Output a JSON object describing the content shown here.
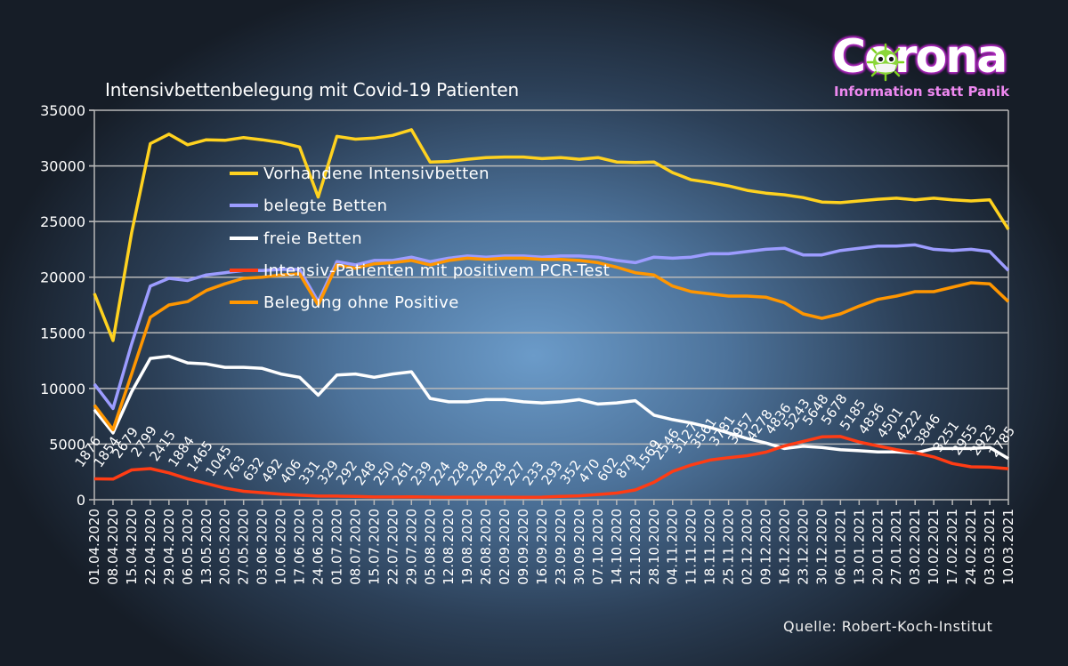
{
  "logo": {
    "title": "Corona",
    "subtitle": "Information statt Panik"
  },
  "source": "Quelle:  Robert-Koch-Institut",
  "chart_data": {
    "type": "line",
    "title": "Intensivbettenbelegung mit Covid-19 Patienten",
    "xlabel": "",
    "ylabel": "",
    "ylim": [
      0,
      35000
    ],
    "yticks": [
      0,
      5000,
      10000,
      15000,
      20000,
      25000,
      30000,
      35000
    ],
    "grid": true,
    "legend_position": "upper-center",
    "x": [
      "01.04.2020",
      "08.04.2020",
      "15.04.2020",
      "22.04.2020",
      "29.04.2020",
      "06.05.2020",
      "13.05.2020",
      "20.05.2020",
      "27.05.2020",
      "03.06.2020",
      "10.06.2020",
      "17.06.2020",
      "24.06.2020",
      "01.07.2020",
      "08.07.2020",
      "15.07.2020",
      "22.07.2020",
      "29.07.2020",
      "05.08.2020",
      "12.08.2020",
      "19.08.2020",
      "26.08.2020",
      "02.09.2020",
      "09.09.2020",
      "16.09.2020",
      "23.09.2020",
      "30.09.2020",
      "07.10.2020",
      "14.10.2020",
      "21.10.2020",
      "28.10.2020",
      "04.11.2020",
      "11.11.2020",
      "18.11.2020",
      "25.11.2020",
      "02.12.2020",
      "09.12.2020",
      "16.12.2020",
      "23.12.2020",
      "30.12.2020",
      "06.01.2021",
      "13.01.2021",
      "20.01.2021",
      "27.01.2021",
      "03.02.2021",
      "10.02.2021",
      "17.02.2021",
      "24.02.2021",
      "03.03.2021",
      "10.03.2021"
    ],
    "series": [
      {
        "name": "Vorhandene Intensivbetten",
        "color": "#ffd21f",
        "values": [
          18540,
          14300,
          24000,
          32000,
          32850,
          31900,
          32350,
          32300,
          32550,
          32350,
          32100,
          31700,
          27200,
          32650,
          32400,
          32500,
          32750,
          33250,
          30350,
          30400,
          30600,
          30750,
          30800,
          30800,
          30650,
          30750,
          30600,
          30750,
          30350,
          30300,
          30350,
          29400,
          28750,
          28500,
          28200,
          27800,
          27550,
          27400,
          27150,
          26750,
          26700,
          26850,
          27000,
          27100,
          26950,
          27100,
          26950,
          26850,
          26950,
          24300
        ]
      },
      {
        "name": "belegte Betten",
        "color": "#9c9cff",
        "values": [
          10400,
          8200,
          14000,
          19200,
          19900,
          19700,
          20200,
          20400,
          20600,
          20600,
          20700,
          20700,
          17800,
          21400,
          21100,
          21500,
          21500,
          21800,
          21400,
          21700,
          21900,
          21800,
          21900,
          21900,
          21800,
          21900,
          21900,
          21800,
          21500,
          21300,
          21800,
          21700,
          21800,
          22100,
          22100,
          22300,
          22500,
          22600,
          22000,
          22000,
          22400,
          22600,
          22800,
          22800,
          22900,
          22500,
          22400,
          22500,
          22300,
          20600
        ]
      },
      {
        "name": "freie Betten",
        "color": "#ffffff",
        "values": [
          8100,
          6000,
          9700,
          12700,
          12900,
          12300,
          12200,
          11900,
          11900,
          11800,
          11300,
          11000,
          9400,
          11200,
          11300,
          11000,
          11300,
          11500,
          9100,
          8800,
          8800,
          9000,
          9000,
          8800,
          8700,
          8800,
          9000,
          8600,
          8700,
          8900,
          7600,
          7200,
          6900,
          6500,
          6000,
          5500,
          5100,
          4600,
          4800,
          4700,
          4500,
          4400,
          4300,
          4300,
          4200,
          4600,
          4600,
          4600,
          4700,
          3700
        ]
      },
      {
        "name": "Intensiv-Patienten mit positivem PCR-Test",
        "color": "#ff3c14",
        "data_labels": true,
        "values": [
          1876,
          1854,
          2679,
          2799,
          2415,
          1884,
          1465,
          1045,
          763,
          632,
          492,
          406,
          331,
          329,
          292,
          248,
          250,
          261,
          239,
          224,
          228,
          228,
          228,
          227,
          233,
          293,
          352,
          470,
          602,
          879,
          1569,
          2546,
          3127,
          3561,
          3781,
          3957,
          4278,
          4836,
          5243,
          5648,
          5678,
          5185,
          4836,
          4501,
          4222,
          3846,
          3251,
          2955,
          2923,
          2785
        ]
      },
      {
        "name": "Belegung ohne Positive",
        "color": "#ff9600",
        "values": [
          8500,
          6300,
          11300,
          16400,
          17500,
          17800,
          18800,
          19400,
          19900,
          20000,
          20200,
          20300,
          17500,
          21100,
          20800,
          21200,
          21300,
          21500,
          21100,
          21500,
          21700,
          21600,
          21700,
          21700,
          21600,
          21600,
          21500,
          21300,
          20900,
          20400,
          20200,
          19200,
          18700,
          18500,
          18300,
          18300,
          18200,
          17700,
          16700,
          16300,
          16700,
          17400,
          18000,
          18300,
          18700,
          18700,
          19100,
          19500,
          19400,
          17800
        ]
      }
    ]
  }
}
